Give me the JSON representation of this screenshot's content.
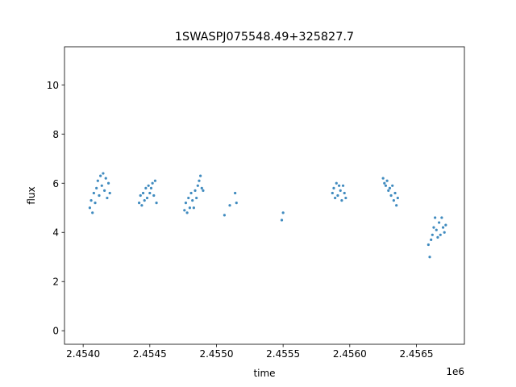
{
  "chart_data": {
    "type": "scatter",
    "title": "1SWASPJ075548.49+325827.7",
    "xlabel": "time",
    "ylabel": "flux",
    "x_offset_label": "1e6",
    "xlim": [
      2.45386,
      2.45686
    ],
    "ylim": [
      -0.55,
      11.55
    ],
    "xticks": [
      2.454,
      2.4545,
      2.455,
      2.4555,
      2.456,
      2.4565
    ],
    "xtick_labels": [
      "2.4540",
      "2.4545",
      "2.4550",
      "2.4555",
      "2.4560",
      "2.4565"
    ],
    "yticks": [
      0,
      2,
      4,
      6,
      8,
      10
    ],
    "ytick_labels": [
      "0",
      "2",
      "4",
      "6",
      "8",
      "10"
    ],
    "grid": false,
    "legend": "none",
    "marker_color": "#1f77b4",
    "series": [
      {
        "x": [
          2.45405,
          2.45406,
          2.45407,
          2.45408,
          2.45409,
          2.4541,
          2.45411,
          2.45412,
          2.45413,
          2.45414,
          2.45415,
          2.45416,
          2.45417,
          2.45418,
          2.45419,
          2.4542,
          2.45442,
          2.45443,
          2.45444,
          2.45445,
          2.45446,
          2.45447,
          2.45448,
          2.45449,
          2.4545,
          2.45451,
          2.45452,
          2.45453,
          2.45454,
          2.45455,
          2.45476,
          2.45477,
          2.45478,
          2.45479,
          2.4548,
          2.45481,
          2.45482,
          2.45483,
          2.45484,
          2.45485,
          2.45486,
          2.45487,
          2.45488,
          2.45489,
          2.4549,
          2.45506,
          2.4551,
          2.45514,
          2.45515,
          2.45549,
          2.4555,
          2.45587,
          2.45588,
          2.45589,
          2.4559,
          2.45591,
          2.45592,
          2.45593,
          2.45594,
          2.45595,
          2.45596,
          2.45597,
          2.45625,
          2.45626,
          2.45627,
          2.45628,
          2.45629,
          2.4563,
          2.45631,
          2.45632,
          2.45633,
          2.45634,
          2.45635,
          2.45636,
          2.45659,
          2.4566,
          2.45661,
          2.45662,
          2.45663,
          2.45664,
          2.45665,
          2.45666,
          2.45667,
          2.45668,
          2.45669,
          2.4567,
          2.45671,
          2.45672
        ],
        "y": [
          5.0,
          5.3,
          4.8,
          5.6,
          5.2,
          5.8,
          6.1,
          5.5,
          6.3,
          5.9,
          6.4,
          5.7,
          6.2,
          5.4,
          6.0,
          5.6,
          5.2,
          5.5,
          5.1,
          5.6,
          5.3,
          5.8,
          5.4,
          5.9,
          5.6,
          5.8,
          6.0,
          5.5,
          6.1,
          5.2,
          4.9,
          5.2,
          4.8,
          5.4,
          5.0,
          5.6,
          5.3,
          5.0,
          5.7,
          5.4,
          5.9,
          6.1,
          6.3,
          5.8,
          5.7,
          4.7,
          5.1,
          5.6,
          5.2,
          4.5,
          4.8,
          5.6,
          5.8,
          5.4,
          6.0,
          5.5,
          5.9,
          5.7,
          5.3,
          5.9,
          5.6,
          5.4,
          6.2,
          6.0,
          5.9,
          6.1,
          5.7,
          5.8,
          5.5,
          5.9,
          5.3,
          5.6,
          5.1,
          5.4,
          3.5,
          3.0,
          3.7,
          3.9,
          4.2,
          4.6,
          4.1,
          3.8,
          4.4,
          3.9,
          4.6,
          4.2,
          4.0,
          4.3
        ]
      }
    ]
  }
}
